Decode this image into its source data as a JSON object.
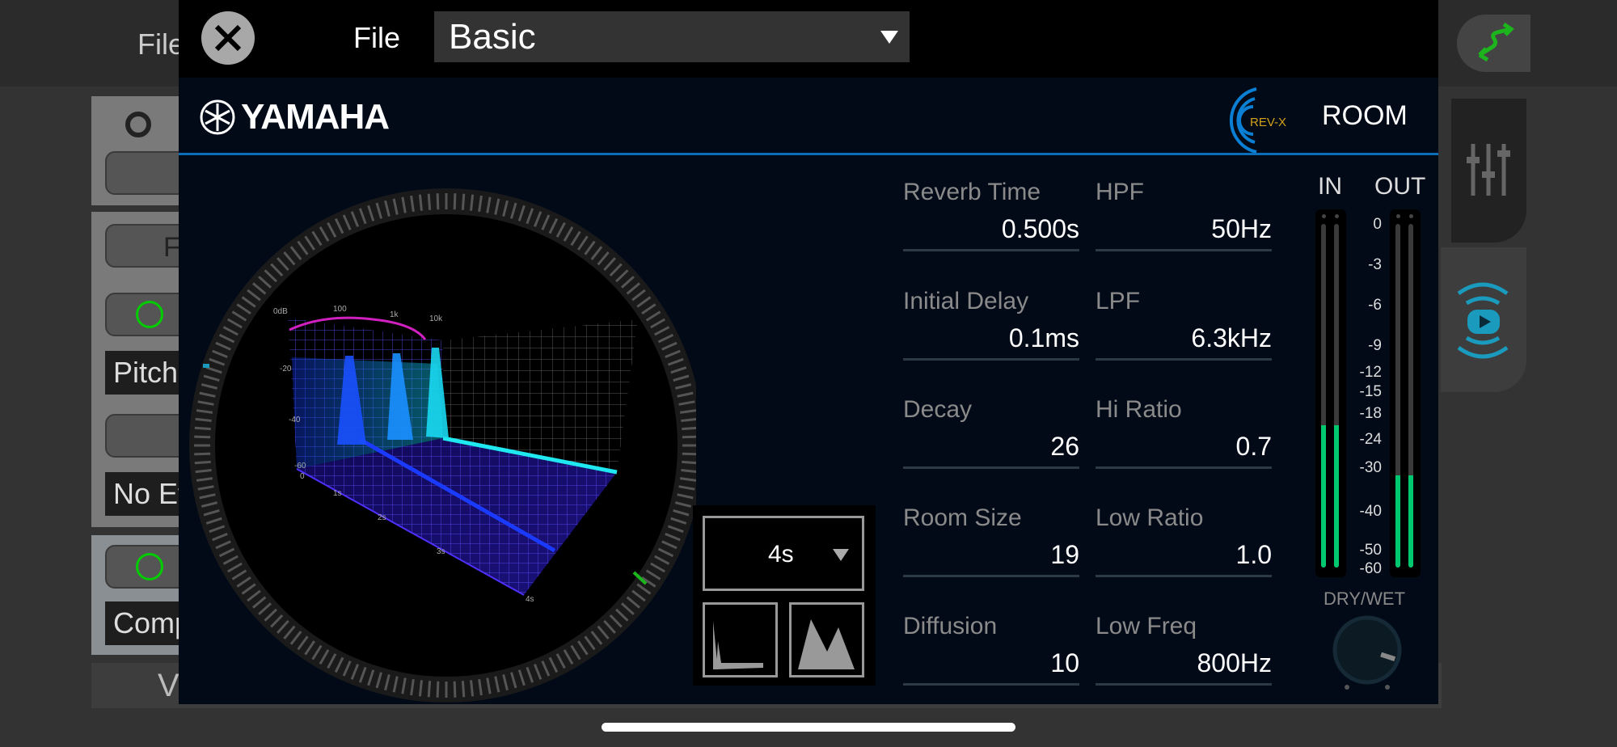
{
  "background": {
    "title": "File",
    "fx_label": "FX",
    "slot_labels": [
      "Pitch",
      "No Ef",
      "Comp"
    ],
    "bottom_label": "V"
  },
  "header": {
    "file_label": "File",
    "preset": "Basic"
  },
  "plugin": {
    "brand": "YAMAHA",
    "logo": "REV-X",
    "type": "ROOM",
    "params": [
      {
        "label": "Reverb Time",
        "value": "0.500s"
      },
      {
        "label": "HPF",
        "value": "50Hz"
      },
      {
        "label": "Initial Delay",
        "value": "0.1ms"
      },
      {
        "label": "LPF",
        "value": "6.3kHz"
      },
      {
        "label": "Decay",
        "value": "26"
      },
      {
        "label": "Hi Ratio",
        "value": "0.7"
      },
      {
        "label": "Room Size",
        "value": "19"
      },
      {
        "label": "Low Ratio",
        "value": "1.0"
      },
      {
        "label": "Diffusion",
        "value": "10"
      },
      {
        "label": "Low Freq",
        "value": "800Hz"
      }
    ],
    "graph": {
      "freq_labels": [
        "0dB",
        "100",
        "1k",
        "10k"
      ],
      "db_labels": [
        "-20",
        "-40",
        "-60"
      ],
      "time_labels": [
        "0",
        "1s",
        "2s",
        "3s",
        "4s"
      ],
      "time_range": "4s"
    },
    "meters": {
      "in_label": "IN",
      "out_label": "OUT",
      "scale": [
        "0",
        "-3",
        "-6",
        "-9",
        "-12",
        "-15",
        "-18",
        "-24",
        "-30",
        "-40",
        "-50",
        "-60"
      ],
      "in_level_db": -21,
      "out_level_db": -32,
      "level_color": "#00c86e"
    },
    "dry_wet": {
      "label": "DRY/WET",
      "value_fraction": 0.9
    }
  },
  "colors": {
    "panel": "#020a18",
    "accent": "#0a6fb8",
    "logo_gold": "#d4a21a"
  }
}
